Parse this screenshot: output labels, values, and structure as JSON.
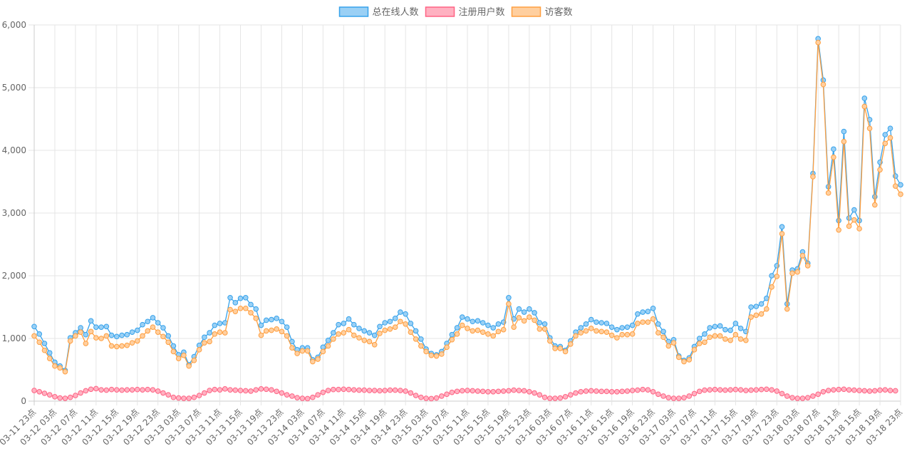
{
  "chart_data": {
    "type": "line",
    "title": "",
    "xlabel": "",
    "ylabel": "",
    "ylim": [
      0,
      6000
    ],
    "y_ticks": [
      "0",
      "1,000",
      "2,000",
      "3,000",
      "4,000",
      "5,000",
      "6,000"
    ],
    "grid": true,
    "legend_position": "top-center",
    "x_tick_labels": [
      "03-11 23点",
      "03-12 03点",
      "03-12 07点",
      "03-12 11点",
      "03-12 15点",
      "03-12 19点",
      "03-12 23点",
      "03-13 03点",
      "03-13 07点",
      "03-13 11点",
      "03-13 15点",
      "03-13 19点",
      "03-13 23点",
      "03-14 03点",
      "03-14 07点",
      "03-14 11点",
      "03-14 15点",
      "03-14 19点",
      "03-14 23点",
      "03-15 03点",
      "03-15 07点",
      "03-15 11点",
      "03-15 15点",
      "03-15 19点",
      "03-15 23点",
      "03-16 03点",
      "03-16 07点",
      "03-16 11点",
      "03-16 15点",
      "03-16 19点",
      "03-16 23点",
      "03-17 03点",
      "03-17 07点",
      "03-17 11点",
      "03-17 15点",
      "03-17 19点",
      "03-17 23点",
      "03-18 03点",
      "03-18 07点",
      "03-18 11点",
      "03-18 15点",
      "03-18 19点",
      "03-18 23点"
    ],
    "series": [
      {
        "name": "总在线人数",
        "color": "#36a2eb",
        "fill": "#9ad0f5",
        "values": [
          1190,
          1070,
          920,
          770,
          620,
          560,
          490,
          1010,
          1090,
          1170,
          1060,
          1280,
          1180,
          1180,
          1190,
          1050,
          1030,
          1050,
          1060,
          1100,
          1130,
          1220,
          1270,
          1330,
          1250,
          1170,
          1040,
          880,
          740,
          780,
          580,
          710,
          890,
          1020,
          1090,
          1210,
          1240,
          1250,
          1650,
          1570,
          1640,
          1650,
          1540,
          1470,
          1210,
          1290,
          1300,
          1320,
          1270,
          1180,
          950,
          820,
          850,
          850,
          660,
          700,
          860,
          970,
          1090,
          1220,
          1240,
          1310,
          1220,
          1160,
          1120,
          1090,
          1050,
          1190,
          1250,
          1270,
          1320,
          1420,
          1390,
          1240,
          1120,
          990,
          830,
          760,
          740,
          790,
          920,
          1060,
          1170,
          1340,
          1310,
          1270,
          1280,
          1250,
          1210,
          1170,
          1230,
          1260,
          1650,
          1310,
          1470,
          1420,
          1470,
          1410,
          1250,
          1230,
          1010,
          880,
          870,
          810,
          960,
          1100,
          1170,
          1230,
          1300,
          1260,
          1250,
          1240,
          1180,
          1140,
          1170,
          1180,
          1210,
          1390,
          1420,
          1430,
          1480,
          1230,
          1110,
          950,
          980,
          720,
          650,
          690,
          870,
          1000,
          1070,
          1170,
          1190,
          1200,
          1140,
          1130,
          1240,
          1160,
          1110,
          1500,
          1510,
          1550,
          1640,
          2000,
          2160,
          2780,
          1550,
          2090,
          2110,
          2380,
          2200,
          3630,
          5780,
          5120,
          3420,
          4020,
          2880,
          4300,
          2920,
          3050,
          2880,
          4830,
          4490,
          3260,
          3810,
          4250,
          4350,
          3590,
          3450
        ]
      },
      {
        "name": "注册用户数",
        "color": "#ff6384",
        "fill": "#ffb1c1",
        "values": [
          170,
          150,
          125,
          100,
          70,
          50,
          45,
          60,
          90,
          130,
          165,
          190,
          200,
          180,
          175,
          185,
          180,
          175,
          180,
          180,
          185,
          180,
          185,
          180,
          160,
          130,
          100,
          60,
          50,
          45,
          45,
          60,
          90,
          130,
          170,
          185,
          180,
          195,
          180,
          175,
          170,
          165,
          160,
          180,
          195,
          190,
          180,
          155,
          130,
          100,
          80,
          55,
          45,
          40,
          60,
          100,
          140,
          170,
          185,
          185,
          190,
          185,
          180,
          175,
          175,
          170,
          170,
          165,
          170,
          175,
          175,
          170,
          160,
          130,
          90,
          60,
          45,
          40,
          50,
          80,
          110,
          140,
          155,
          165,
          170,
          165,
          160,
          155,
          150,
          150,
          155,
          160,
          165,
          175,
          170,
          165,
          150,
          130,
          100,
          60,
          45,
          45,
          50,
          70,
          100,
          130,
          150,
          160,
          165,
          160,
          155,
          155,
          150,
          150,
          155,
          160,
          170,
          175,
          185,
          180,
          150,
          110,
          80,
          55,
          45,
          45,
          55,
          80,
          120,
          155,
          175,
          180,
          185,
          180,
          175,
          180,
          185,
          180,
          170,
          175,
          180,
          185,
          190,
          180,
          160,
          120,
          80,
          55,
          45,
          45,
          55,
          80,
          110,
          150,
          170,
          180,
          185,
          190,
          180,
          175,
          170,
          165,
          160,
          165,
          175,
          180,
          170,
          165
        ]
      },
      {
        "name": "访客数",
        "color": "#ff9f40",
        "fill": "#ffcf9f",
        "values": [
          1040,
          940,
          810,
          680,
          560,
          530,
          470,
          960,
          1040,
          1100,
          920,
          1110,
          1010,
          1000,
          1040,
          880,
          870,
          880,
          890,
          930,
          960,
          1040,
          1120,
          1180,
          1100,
          1030,
          940,
          790,
          680,
          730,
          560,
          650,
          820,
          930,
          950,
          1070,
          1100,
          1090,
          1460,
          1430,
          1480,
          1480,
          1410,
          1320,
          1050,
          1120,
          1130,
          1150,
          1110,
          1040,
          850,
          760,
          800,
          800,
          630,
          670,
          790,
          880,
          990,
          1070,
          1090,
          1140,
          1050,
          1010,
          970,
          950,
          900,
          1080,
          1130,
          1150,
          1180,
          1270,
          1230,
          1100,
          990,
          880,
          790,
          730,
          720,
          750,
          860,
          980,
          1070,
          1210,
          1160,
          1120,
          1130,
          1100,
          1070,
          1040,
          1110,
          1140,
          1550,
          1180,
          1330,
          1280,
          1340,
          1290,
          1150,
          1150,
          960,
          840,
          840,
          790,
          910,
          1040,
          1090,
          1120,
          1160,
          1120,
          1110,
          1100,
          1050,
          1010,
          1060,
          1060,
          1070,
          1240,
          1260,
          1260,
          1310,
          1090,
          1020,
          880,
          930,
          700,
          630,
          660,
          820,
          920,
          940,
          1020,
          1040,
          1040,
          990,
          970,
          1060,
          990,
          970,
          1340,
          1370,
          1390,
          1470,
          1820,
          1990,
          2670,
          1470,
          2040,
          2060,
          2320,
          2160,
          3580,
          5720,
          5050,
          3320,
          3890,
          2730,
          4140,
          2790,
          2890,
          2750,
          4700,
          4350,
          3130,
          3690,
          4110,
          4200,
          3430,
          3300
        ]
      }
    ]
  }
}
